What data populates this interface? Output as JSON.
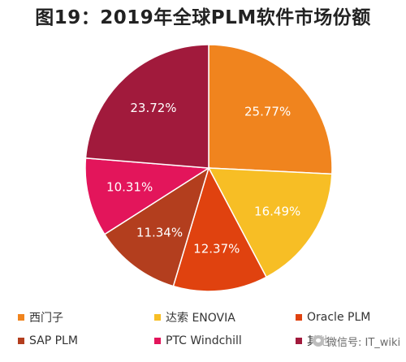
{
  "title": "图19：2019年全球PLM软件市场份额",
  "chart_data": {
    "type": "pie",
    "slices": [
      {
        "label": "西门子",
        "value": 25.77,
        "display": "25.77%",
        "color": "#F0841E"
      },
      {
        "label": "达索 ENOVIA",
        "value": 16.49,
        "display": "16.49%",
        "color": "#F7BE25"
      },
      {
        "label": "Oracle PLM",
        "value": 12.37,
        "display": "12.37%",
        "color": "#E0420F"
      },
      {
        "label": "SAP PLM",
        "value": 11.34,
        "display": "11.34%",
        "color": "#B33E1E"
      },
      {
        "label": "PTC Windchill",
        "value": 10.31,
        "display": "10.31%",
        "color": "#E3155B"
      },
      {
        "label": "其他",
        "value": 23.72,
        "display": "23.72%",
        "color": "#A11A3C"
      }
    ],
    "legend_placement": "bottom",
    "start_angle": "12 o'clock, clockwise"
  },
  "legend": [
    {
      "label": "西门子",
      "color": "#F0841E"
    },
    {
      "label": "达索 ENOVIA",
      "color": "#F7BE25"
    },
    {
      "label": "Oracle PLM",
      "color": "#E0420F"
    },
    {
      "label": "SAP PLM",
      "color": "#B33E1E"
    },
    {
      "label": "PTC Windchill",
      "color": "#E3155B"
    },
    {
      "label": "其他",
      "color": "#A11A3C"
    }
  ],
  "watermark": {
    "text": "微信号: IT_wiki",
    "icon": "wechat-icon"
  }
}
